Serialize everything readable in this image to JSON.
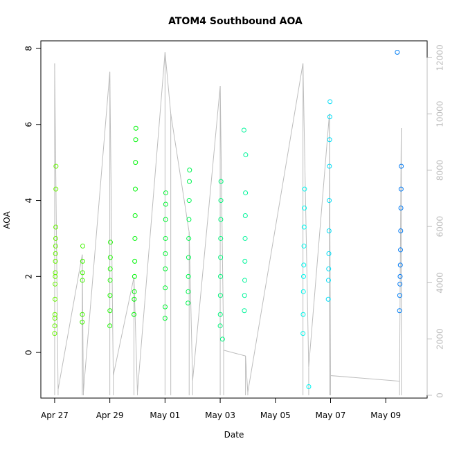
{
  "chart_data": {
    "type": "scatter",
    "title": "ATOM4 Southbound AOA",
    "xlabel": "Date",
    "ylabel": "AOA",
    "xlim": [
      "2017-04-26T12:00",
      "2017-05-10T12:00"
    ],
    "ylim": [
      -1.2,
      8.2
    ],
    "y2lim": [
      -100,
      12600
    ],
    "x_ticks": [
      {
        "date": "2017-04-27",
        "label": "Apr 27"
      },
      {
        "date": "2017-04-29",
        "label": "Apr 29"
      },
      {
        "date": "2017-05-01",
        "label": "May 01"
      },
      {
        "date": "2017-05-03",
        "label": "May 03"
      },
      {
        "date": "2017-05-05",
        "label": "May 05"
      },
      {
        "date": "2017-05-07",
        "label": "May 07"
      },
      {
        "date": "2017-05-09",
        "label": "May 09"
      }
    ],
    "y_ticks": [
      0,
      2,
      4,
      6,
      8
    ],
    "y2_ticks": [
      0,
      2000,
      4000,
      6000,
      8000,
      10000,
      12000
    ],
    "grid": false,
    "series": [
      {
        "type": "points",
        "marker": "open-circle",
        "color_by_time": true,
        "clusters": [
          {
            "date": "2017-04-27",
            "points": [
              {
                "x": "2017-04-27T00:00",
                "y": 0.5
              },
              {
                "x": "2017-04-27T00:05",
                "y": 0.7
              },
              {
                "x": "2017-04-27T00:10",
                "y": 0.9
              },
              {
                "x": "2017-04-27T00:15",
                "y": 1.0
              },
              {
                "x": "2017-04-27T00:20",
                "y": 1.4
              },
              {
                "x": "2017-04-27T00:25",
                "y": 1.8
              },
              {
                "x": "2017-04-27T00:30",
                "y": 2.0
              },
              {
                "x": "2017-04-27T00:35",
                "y": 2.1
              },
              {
                "x": "2017-04-27T00:40",
                "y": 2.4
              },
              {
                "x": "2017-04-27T00:45",
                "y": 2.6
              },
              {
                "x": "2017-04-27T00:50",
                "y": 2.8
              },
              {
                "x": "2017-04-27T00:55",
                "y": 3.0
              },
              {
                "x": "2017-04-27T01:00",
                "y": 3.3
              },
              {
                "x": "2017-04-27T01:05",
                "y": 4.3
              },
              {
                "x": "2017-04-27T01:10",
                "y": 4.9
              }
            ]
          },
          {
            "date": "2017-04-28",
            "points": [
              {
                "x": "2017-04-28T00:00",
                "y": 0.8
              },
              {
                "x": "2017-04-28T00:05",
                "y": 1.0
              },
              {
                "x": "2017-04-28T00:10",
                "y": 1.9
              },
              {
                "x": "2017-04-28T00:15",
                "y": 2.1
              },
              {
                "x": "2017-04-28T00:20",
                "y": 2.4
              },
              {
                "x": "2017-04-28T00:25",
                "y": 2.8
              }
            ]
          },
          {
            "date": "2017-04-29",
            "points": [
              {
                "x": "2017-04-29T00:00",
                "y": 0.7
              },
              {
                "x": "2017-04-29T00:05",
                "y": 1.1
              },
              {
                "x": "2017-04-29T00:10",
                "y": 1.5
              },
              {
                "x": "2017-04-29T00:15",
                "y": 1.9
              },
              {
                "x": "2017-04-29T00:20",
                "y": 2.2
              },
              {
                "x": "2017-04-29T00:25",
                "y": 2.5
              },
              {
                "x": "2017-04-29T00:30",
                "y": 2.9
              }
            ]
          },
          {
            "date": "2017-04-29 PM",
            "points": [
              {
                "x": "2017-04-29T21:00",
                "y": 1.0
              },
              {
                "x": "2017-04-29T21:10",
                "y": 1.4
              },
              {
                "x": "2017-04-29T21:20",
                "y": 1.6
              },
              {
                "x": "2017-04-29T21:30",
                "y": 2.0
              },
              {
                "x": "2017-04-29T21:40",
                "y": 2.4
              },
              {
                "x": "2017-04-29T21:50",
                "y": 3.0
              },
              {
                "x": "2017-04-29T22:00",
                "y": 3.6
              },
              {
                "x": "2017-04-29T22:10",
                "y": 4.3
              },
              {
                "x": "2017-04-29T22:20",
                "y": 5.0
              },
              {
                "x": "2017-04-29T22:30",
                "y": 5.6
              },
              {
                "x": "2017-04-29T22:40",
                "y": 5.9
              }
            ]
          },
          {
            "date": "2017-05-01",
            "points": [
              {
                "x": "2017-05-01T00:00",
                "y": 0.9
              },
              {
                "x": "2017-05-01T00:05",
                "y": 1.2
              },
              {
                "x": "2017-05-01T00:10",
                "y": 1.7
              },
              {
                "x": "2017-05-01T00:15",
                "y": 2.2
              },
              {
                "x": "2017-05-01T00:20",
                "y": 2.6
              },
              {
                "x": "2017-05-01T00:25",
                "y": 3.0
              },
              {
                "x": "2017-05-01T00:30",
                "y": 3.5
              },
              {
                "x": "2017-05-01T00:35",
                "y": 3.9
              },
              {
                "x": "2017-05-01T00:40",
                "y": 4.2
              }
            ]
          },
          {
            "date": "2017-05-01 PM",
            "points": [
              {
                "x": "2017-05-01T20:00",
                "y": 1.3
              },
              {
                "x": "2017-05-01T20:10",
                "y": 1.6
              },
              {
                "x": "2017-05-01T20:20",
                "y": 2.0
              },
              {
                "x": "2017-05-01T20:30",
                "y": 2.5
              },
              {
                "x": "2017-05-01T20:40",
                "y": 3.0
              },
              {
                "x": "2017-05-01T20:50",
                "y": 3.5
              },
              {
                "x": "2017-05-01T21:00",
                "y": 4.0
              },
              {
                "x": "2017-05-01T21:10",
                "y": 4.5
              },
              {
                "x": "2017-05-01T21:20",
                "y": 4.8
              }
            ]
          },
          {
            "date": "2017-05-03",
            "points": [
              {
                "x": "2017-05-03T00:00",
                "y": 0.7
              },
              {
                "x": "2017-05-03T00:05",
                "y": 1.0
              },
              {
                "x": "2017-05-03T00:10",
                "y": 1.5
              },
              {
                "x": "2017-05-03T00:15",
                "y": 2.0
              },
              {
                "x": "2017-05-03T00:20",
                "y": 2.5
              },
              {
                "x": "2017-05-03T00:25",
                "y": 3.0
              },
              {
                "x": "2017-05-03T00:30",
                "y": 3.5
              },
              {
                "x": "2017-05-03T00:35",
                "y": 4.0
              },
              {
                "x": "2017-05-03T00:40",
                "y": 4.5
              },
              {
                "x": "2017-05-03T02:00",
                "y": 0.35
              }
            ]
          },
          {
            "date": "2017-05-03 PM",
            "points": [
              {
                "x": "2017-05-03T21:00",
                "y": 1.1
              },
              {
                "x": "2017-05-03T21:10",
                "y": 1.5
              },
              {
                "x": "2017-05-03T21:20",
                "y": 1.9
              },
              {
                "x": "2017-05-03T21:30",
                "y": 2.4
              },
              {
                "x": "2017-05-03T21:40",
                "y": 3.0
              },
              {
                "x": "2017-05-03T21:50",
                "y": 3.6
              },
              {
                "x": "2017-05-03T22:00",
                "y": 4.2
              },
              {
                "x": "2017-05-03T22:10",
                "y": 5.2
              },
              {
                "x": "2017-05-03T20:40",
                "y": 5.85
              }
            ]
          },
          {
            "date": "2017-05-06",
            "points": [
              {
                "x": "2017-05-06T00:00",
                "y": 0.5
              },
              {
                "x": "2017-05-06T00:10",
                "y": 1.0
              },
              {
                "x": "2017-05-06T00:20",
                "y": 1.6
              },
              {
                "x": "2017-05-06T00:30",
                "y": 2.0
              },
              {
                "x": "2017-05-06T00:40",
                "y": 2.3
              },
              {
                "x": "2017-05-06T00:50",
                "y": 2.8
              },
              {
                "x": "2017-05-06T01:00",
                "y": 3.3
              },
              {
                "x": "2017-05-06T01:10",
                "y": 3.8
              },
              {
                "x": "2017-05-06T01:20",
                "y": 4.3
              },
              {
                "x": "2017-05-06T05:00",
                "y": -0.9
              }
            ]
          },
          {
            "date": "2017-05-07",
            "points": [
              {
                "x": "2017-05-06T22:00",
                "y": 1.4
              },
              {
                "x": "2017-05-06T22:10",
                "y": 1.9
              },
              {
                "x": "2017-05-06T22:20",
                "y": 2.2
              },
              {
                "x": "2017-05-06T22:30",
                "y": 2.6
              },
              {
                "x": "2017-05-06T22:40",
                "y": 3.2
              },
              {
                "x": "2017-05-06T22:50",
                "y": 4.0
              },
              {
                "x": "2017-05-06T23:00",
                "y": 4.9
              },
              {
                "x": "2017-05-06T23:10",
                "y": 5.6
              },
              {
                "x": "2017-05-06T23:20",
                "y": 6.2
              },
              {
                "x": "2017-05-06T23:30",
                "y": 6.6
              }
            ]
          },
          {
            "date": "2017-05-09",
            "points": [
              {
                "x": "2017-05-09T12:00",
                "y": 1.1
              },
              {
                "x": "2017-05-09T12:10",
                "y": 1.5
              },
              {
                "x": "2017-05-09T12:20",
                "y": 1.8
              },
              {
                "x": "2017-05-09T12:30",
                "y": 2.0
              },
              {
                "x": "2017-05-09T12:40",
                "y": 2.3
              },
              {
                "x": "2017-05-09T12:50",
                "y": 2.7
              },
              {
                "x": "2017-05-09T13:00",
                "y": 3.2
              },
              {
                "x": "2017-05-09T13:10",
                "y": 3.8
              },
              {
                "x": "2017-05-09T13:20",
                "y": 4.3
              },
              {
                "x": "2017-05-09T13:30",
                "y": 4.9
              },
              {
                "x": "2017-05-09T10:00",
                "y": 7.9
              }
            ]
          }
        ]
      },
      {
        "type": "line",
        "axis": "right",
        "color": "#bdbdbd",
        "points": [
          {
            "x": "2017-04-27T00:00",
            "y": 11800
          },
          {
            "x": "2017-04-27T03:00",
            "y": 200
          },
          {
            "x": "2017-04-28T00:00",
            "y": 5000
          },
          {
            "x": "2017-04-28T01:00",
            "y": 100
          },
          {
            "x": "2017-04-29T00:00",
            "y": 11500
          },
          {
            "x": "2017-04-29T03:00",
            "y": 700
          },
          {
            "x": "2017-04-29T21:00",
            "y": 4200
          },
          {
            "x": "2017-04-30T00:00",
            "y": 100
          },
          {
            "x": "2017-05-01T00:00",
            "y": 12200
          },
          {
            "x": "2017-05-01T05:00",
            "y": 10000
          },
          {
            "x": "2017-05-01T21:00",
            "y": 5800
          },
          {
            "x": "2017-05-02T00:00",
            "y": 500
          },
          {
            "x": "2017-05-03T00:00",
            "y": 11000
          },
          {
            "x": "2017-05-03T03:00",
            "y": 1600
          },
          {
            "x": "2017-05-03T22:00",
            "y": 1400
          },
          {
            "x": "2017-05-04T00:00",
            "y": 100
          },
          {
            "x": "2017-05-06T00:00",
            "y": 11800
          },
          {
            "x": "2017-05-06T05:00",
            "y": 1000
          },
          {
            "x": "2017-05-06T23:00",
            "y": 10000
          },
          {
            "x": "2017-05-07T00:00",
            "y": 700
          },
          {
            "x": "2017-05-09T12:00",
            "y": 500
          },
          {
            "x": "2017-05-09T13:30",
            "y": 9500
          }
        ]
      }
    ]
  }
}
